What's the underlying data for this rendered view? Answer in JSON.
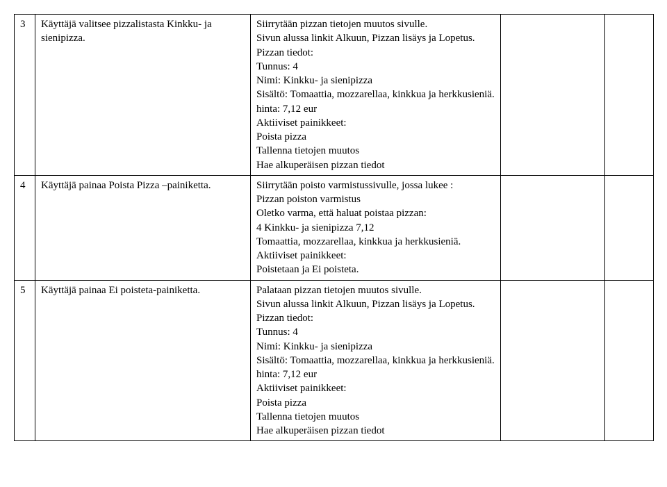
{
  "rows": [
    {
      "num": "3",
      "action": "Käyttäjä valitsee pizzalistasta Kinkku- ja sienipizza.",
      "result": "Siirrytään pizzan tietojen muutos sivulle.\nSivun alussa linkit Alkuun, Pizzan lisäys ja Lopetus.\nPizzan tiedot:\nTunnus: 4\nNimi: Kinkku- ja sienipizza\nSisältö: Tomaattia, mozzarellaa, kinkkua ja herkkusieniä.\nhinta: 7,12 eur\nAktiiviset painikkeet:\nPoista pizza\nTallenna tietojen muutos\nHae alkuperäisen pizzan tiedot"
    },
    {
      "num": "4",
      "action": "Käyttäjä painaa Poista Pizza –painiketta.",
      "result": "Siirrytään poisto varmistussivulle, jossa lukee :\nPizzan poiston varmistus\nOletko varma, että haluat poistaa pizzan:\n4 Kinkku- ja sienipizza 7,12\nTomaattia, mozzarellaa, kinkkua ja herkkusieniä.\nAktiiviset painikkeet:\nPoistetaan ja Ei poisteta."
    },
    {
      "num": "5",
      "action": "Käyttäjä painaa Ei poisteta-painiketta.",
      "result": "Palataan pizzan tietojen muutos sivulle.\nSivun alussa linkit Alkuun, Pizzan lisäys ja Lopetus.\nPizzan tiedot:\nTunnus: 4\nNimi: Kinkku- ja sienipizza\nSisältö: Tomaattia, mozzarellaa, kinkkua ja herkkusieniä.\nhinta: 7,12 eur\nAktiiviset painikkeet:\nPoista pizza\nTallenna tietojen muutos\nHae alkuperäisen pizzan tiedot"
    }
  ]
}
